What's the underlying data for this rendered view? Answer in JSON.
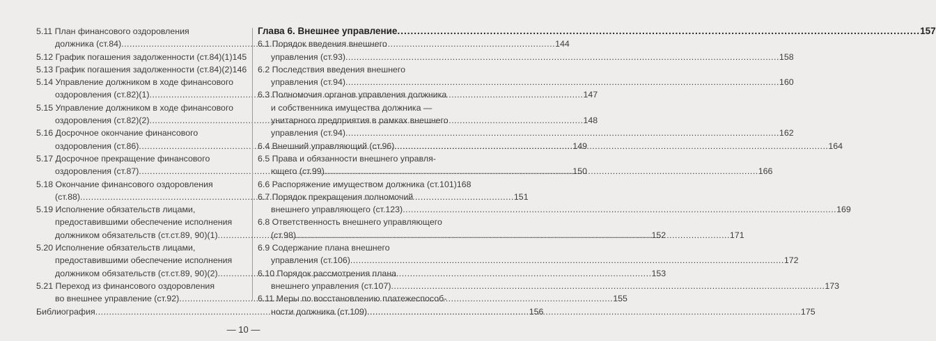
{
  "left": [
    {
      "lines": [
        "5.11 План финансового оздоровления",
        "должника (ст.84)"
      ],
      "page": "144"
    },
    {
      "lines": [
        "5.12 График погашения задолженности (ст.84)(1)"
      ],
      "page": "145"
    },
    {
      "lines": [
        "5.13 График погашения задолженности (ст.84)(2)"
      ],
      "page": "146"
    },
    {
      "lines": [
        "5.14 Управление должником в ходе финансового",
        "оздоровления (ст.82)(1)"
      ],
      "page": "147"
    },
    {
      "lines": [
        "5.15 Управление должником в ходе финансового",
        "оздоровления (ст.82)(2)"
      ],
      "page": "148"
    },
    {
      "lines": [
        "5.16 Досрочное окончание финансового",
        "оздоровления (ст.86)"
      ],
      "page": "149"
    },
    {
      "lines": [
        "5.17 Досрочное прекращение финансового",
        "оздоровления (ст.87)"
      ],
      "page": "150"
    },
    {
      "lines": [
        "5.18 Окончание финансового оздоровления",
        "(ст.88)"
      ],
      "page": "151"
    },
    {
      "lines": [
        "5.19 Исполнение обязательств лицами,",
        "предоставившими обеспечение исполнения",
        "должником обязательств (ст.ст.89, 90)(1)"
      ],
      "page": "152"
    },
    {
      "lines": [
        "5.20 Исполнение обязательств лицами,",
        "предоставившими обеспечение исполнения",
        "должником обязательств (ст.ст.89, 90)(2)"
      ],
      "page": "153"
    },
    {
      "lines": [
        "5.21 Переход из финансового оздоровления",
        "во внешнее управление (ст.92)"
      ],
      "page": "155"
    },
    {
      "lines": [
        "Библиография"
      ],
      "page": "156"
    }
  ],
  "right_heading": {
    "text": "Глава 6. Внешнее управление",
    "page": "157"
  },
  "right": [
    {
      "lines": [
        "6.1 Порядок введения внешнего",
        "управления (ст.93)"
      ],
      "page": "158"
    },
    {
      "lines": [
        "6.2 Последствия введения внешнего",
        "управления (ст.94)"
      ],
      "page": "160"
    },
    {
      "lines": [
        "6.3 Полномочия органов управления должника",
        "и собственника имущества должника —",
        "унитарного предприятия в рамках внешнего",
        "управления (ст.94)"
      ],
      "page": "162"
    },
    {
      "lines": [
        "6.4 Внешний управляющий (ст.96)"
      ],
      "page": "164"
    },
    {
      "lines": [
        "6.5 Права и обязанности внешнего управля-",
        "ющего (ст.99)"
      ],
      "page": "166"
    },
    {
      "lines": [
        "6.6 Распоряжение имуществом должника (ст.101)"
      ],
      "page": "168"
    },
    {
      "lines": [
        "6.7 Порядок прекращения полномочий",
        "внешнего управляющего (ст.123)"
      ],
      "page": "169"
    },
    {
      "lines": [
        "6.8 Ответственность внешнего управляющего",
        "(ст.98)"
      ],
      "page": "171"
    },
    {
      "lines": [
        "6.9 Содержание плана внешнего",
        "управления (ст.106)"
      ],
      "page": "172"
    },
    {
      "lines": [
        "6.10 Порядок рассмотрения плана",
        "внешнего управления (ст.107)"
      ],
      "page": "173"
    },
    {
      "lines": [
        "6.11 Меры по восстановлению платежеспособ-",
        "ности должника (ст.109)"
      ],
      "page": "175"
    }
  ],
  "footer": {
    "page_number": "— 10 —"
  }
}
